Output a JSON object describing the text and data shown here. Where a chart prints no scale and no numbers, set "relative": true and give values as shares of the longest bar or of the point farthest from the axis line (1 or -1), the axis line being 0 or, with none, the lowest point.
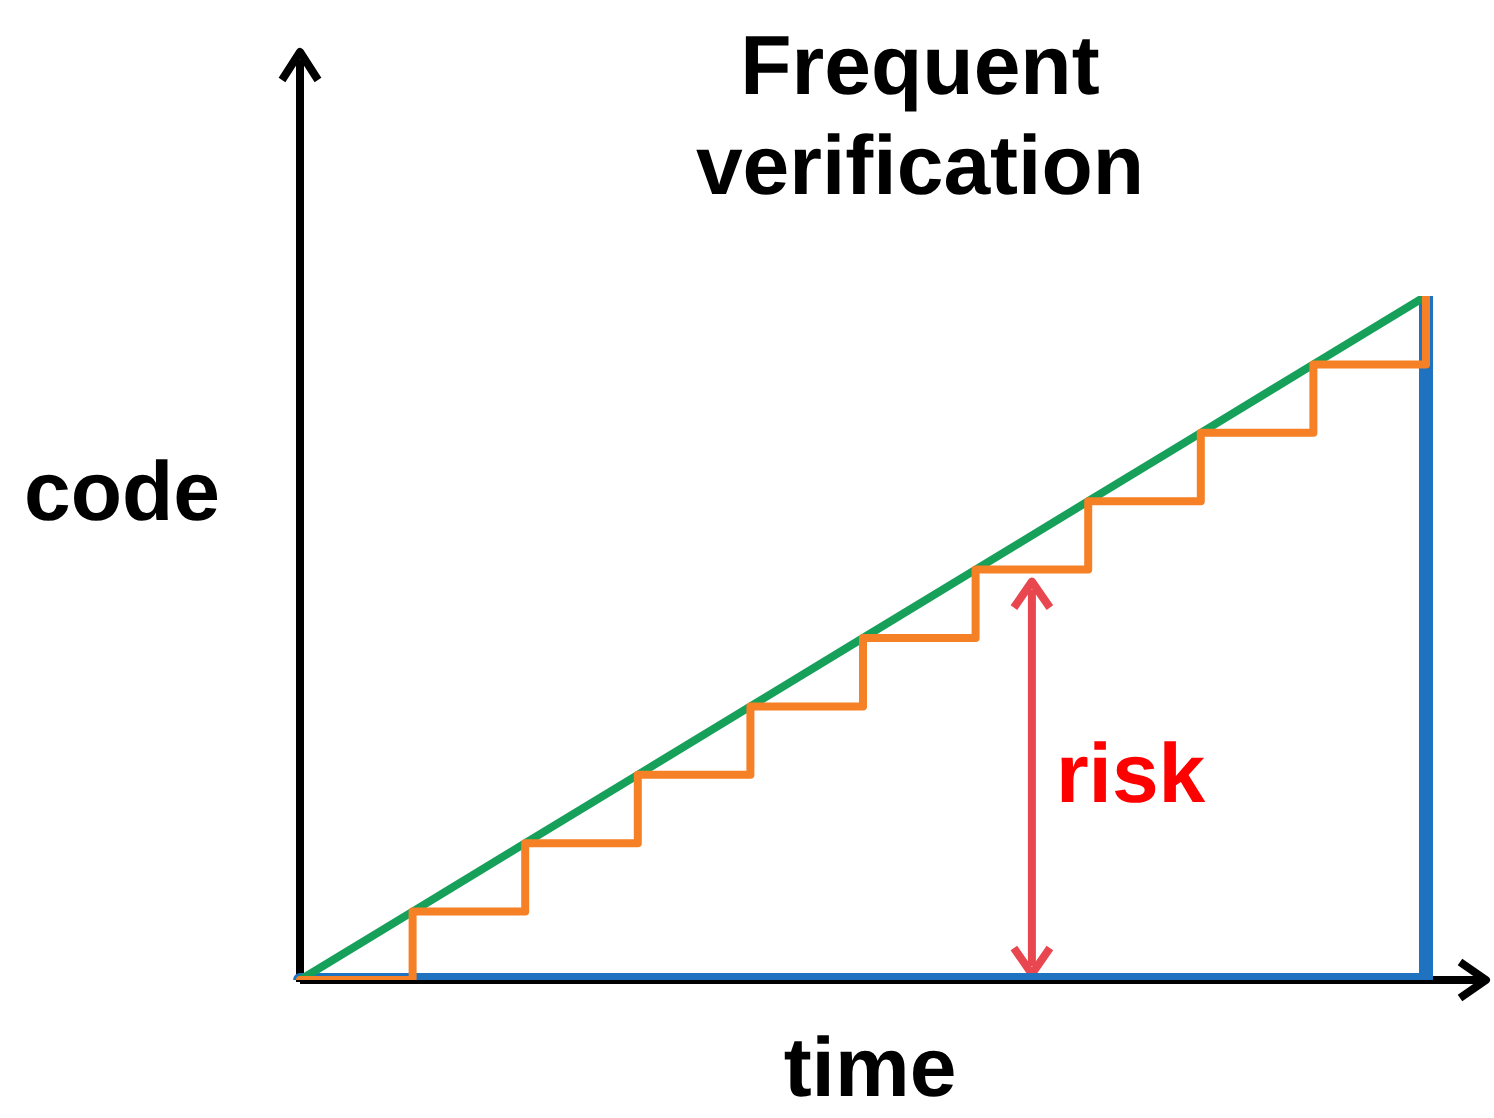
{
  "chart_data": {
    "type": "line",
    "title": "Frequent\nverification",
    "xlabel": "time",
    "ylabel": "code",
    "relative": true,
    "grid": false,
    "legend": false,
    "marker": "none",
    "categories": [
      null,
      null,
      null,
      null,
      null,
      null,
      null,
      null,
      null,
      null,
      null
    ],
    "series": [
      {
        "type": "step",
        "color": "#1f72c0",
        "values": [
          0,
          0,
          0,
          0,
          0,
          0,
          0,
          0,
          0,
          0,
          1
        ]
      },
      {
        "type": "line",
        "color": "#16a05a",
        "values": [
          0,
          0.1,
          0.2,
          0.3,
          0.4,
          0.5,
          0.6,
          0.7,
          0.8,
          0.9,
          1
        ]
      },
      {
        "type": "step",
        "color": "#f58025",
        "values": [
          0,
          0.1,
          0.2,
          0.3,
          0.4,
          0.5,
          0.6,
          0.7,
          0.8,
          0.9,
          1
        ]
      }
    ],
    "annotations": [
      "risk"
    ]
  }
}
